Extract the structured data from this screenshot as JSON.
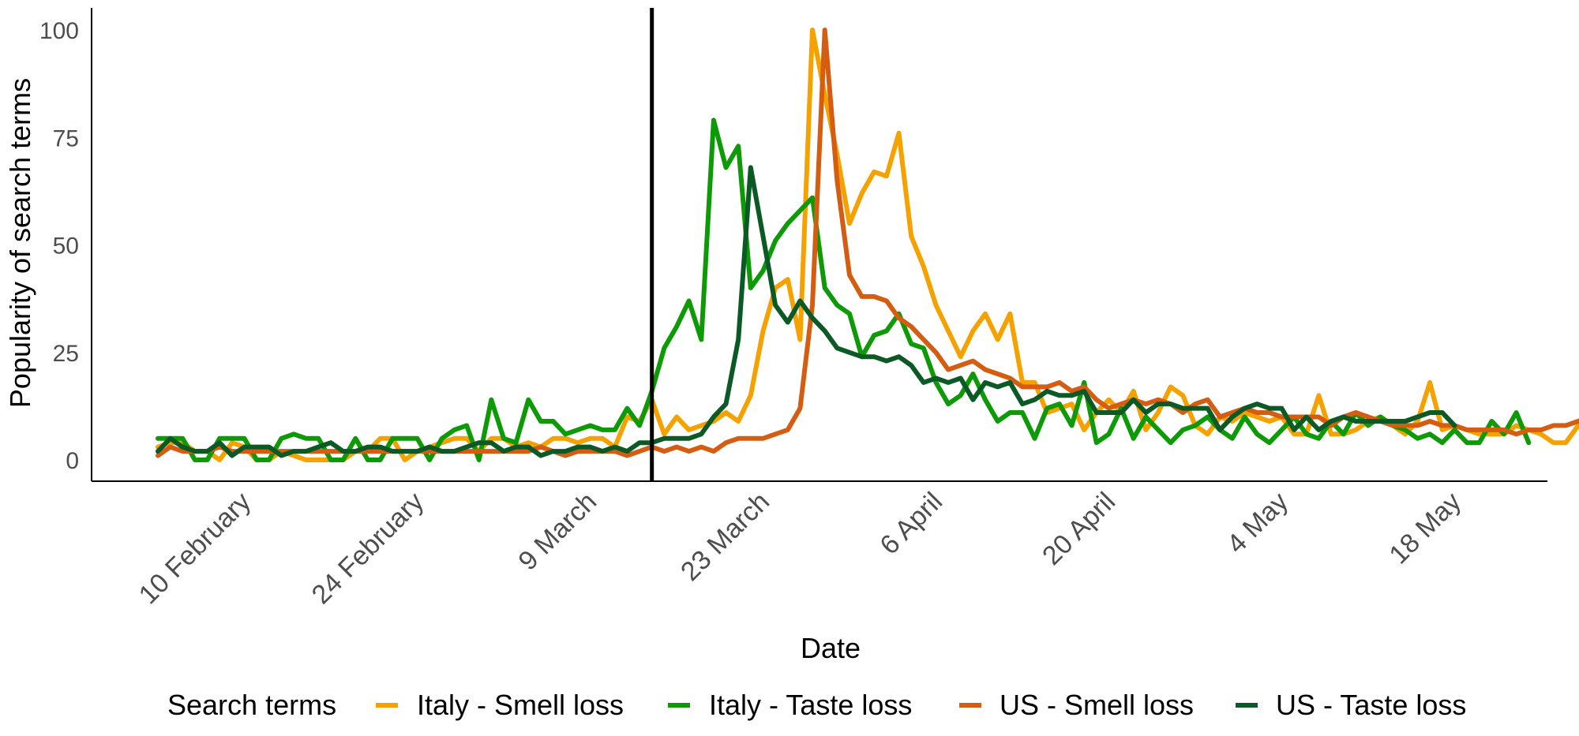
{
  "chart_data": {
    "type": "line",
    "xlabel": "Date",
    "ylabel": "Popularity of search terms",
    "ylim": [
      0,
      105
    ],
    "yticks": [
      "0",
      "25",
      "50",
      "75",
      "100"
    ],
    "x_start": "2020-02-03",
    "x_end": "2020-05-22",
    "xticks": [
      {
        "date": "2020-02-10",
        "label": "10 February"
      },
      {
        "date": "2020-02-24",
        "label": "24 February"
      },
      {
        "date": "2020-03-09",
        "label": "9 March"
      },
      {
        "date": "2020-03-23",
        "label": "23 March"
      },
      {
        "date": "2020-04-06",
        "label": "6 April"
      },
      {
        "date": "2020-04-20",
        "label": "20 April"
      },
      {
        "date": "2020-05-04",
        "label": "4 May"
      },
      {
        "date": "2020-05-18",
        "label": "18 May"
      }
    ],
    "vline_date": "2020-03-14",
    "legend_title": "Search terms",
    "legend_position": "bottom",
    "grid": false,
    "series": [
      {
        "name": "Italy - Smell loss",
        "color": "#F5A100",
        "values": [
          3,
          4,
          4,
          2,
          2,
          0,
          4,
          3,
          0,
          0,
          2,
          1,
          0,
          0,
          0,
          0,
          2,
          2,
          5,
          5,
          0,
          2,
          3,
          4,
          5,
          5,
          2,
          5,
          5,
          3,
          4,
          3,
          5,
          5,
          4,
          5,
          5,
          3,
          10,
          9,
          14,
          6,
          10,
          7,
          8,
          9,
          11,
          9,
          15,
          30,
          40,
          42,
          28,
          100,
          85,
          71,
          55,
          62,
          67,
          66,
          76,
          52,
          45,
          36,
          30,
          24,
          30,
          34,
          28,
          34,
          18,
          18,
          11,
          12,
          13,
          7,
          11,
          14,
          11,
          16,
          7,
          11,
          17,
          15,
          8,
          6,
          10,
          9,
          11,
          10,
          9,
          10,
          6,
          6,
          15,
          6,
          6,
          7,
          9,
          10,
          8,
          6,
          9,
          18,
          7,
          8,
          7,
          6,
          6,
          6,
          8,
          7,
          6,
          4,
          4,
          8,
          6,
          5,
          7,
          9,
          7
        ]
      },
      {
        "name": "Italy - Taste loss",
        "color": "#0E9A06",
        "values": [
          5,
          5,
          5,
          0,
          0,
          5,
          5,
          5,
          0,
          0,
          5,
          6,
          5,
          5,
          0,
          0,
          5,
          0,
          0,
          5,
          5,
          5,
          0,
          5,
          7,
          8,
          0,
          14,
          5,
          4,
          14,
          9,
          9,
          6,
          7,
          8,
          7,
          7,
          12,
          8,
          16,
          26,
          31,
          37,
          28,
          79,
          68,
          73,
          40,
          44,
          51,
          55,
          58,
          61,
          40,
          36,
          34,
          24,
          29,
          30,
          34,
          27,
          26,
          18,
          13,
          15,
          20,
          14,
          9,
          11,
          11,
          5,
          12,
          13,
          8,
          18,
          4,
          6,
          12,
          5,
          10,
          7,
          4,
          7,
          8,
          10,
          7,
          5,
          10,
          6,
          4,
          7,
          10,
          6,
          5,
          9,
          6,
          11,
          8,
          10,
          8,
          7,
          5,
          6,
          4,
          7,
          4,
          4,
          9,
          6,
          11,
          4
        ]
      },
      {
        "name": "US - Smell loss",
        "color": "#D45D12",
        "values": [
          1,
          3,
          2,
          2,
          2,
          3,
          2,
          2,
          2,
          2,
          2,
          2,
          2,
          2,
          2,
          2,
          2,
          2,
          2,
          2,
          2,
          2,
          2,
          2,
          2,
          2,
          2,
          2,
          2,
          2,
          2,
          3,
          2,
          1,
          2,
          2,
          2,
          2,
          1,
          2,
          3,
          2,
          3,
          2,
          3,
          2,
          4,
          5,
          5,
          5,
          6,
          7,
          12,
          36,
          100,
          65,
          43,
          38,
          38,
          37,
          33,
          31,
          28,
          25,
          21,
          22,
          23,
          21,
          20,
          19,
          17,
          17,
          17,
          18,
          16,
          17,
          14,
          12,
          13,
          14,
          13,
          14,
          13,
          11,
          13,
          14,
          10,
          11,
          12,
          11,
          11,
          10,
          10,
          10,
          10,
          8,
          10,
          11,
          10,
          9,
          8,
          8,
          8,
          9,
          8,
          8,
          7,
          7,
          7,
          7,
          6,
          7,
          7,
          8,
          8,
          9,
          10,
          8
        ]
      },
      {
        "name": "US - Taste loss",
        "color": "#0B5A26",
        "values": [
          2,
          5,
          3,
          2,
          2,
          4,
          1,
          3,
          3,
          3,
          1,
          2,
          2,
          3,
          4,
          2,
          2,
          3,
          3,
          2,
          2,
          2,
          3,
          2,
          2,
          3,
          4,
          4,
          2,
          3,
          3,
          1,
          2,
          2,
          3,
          3,
          2,
          3,
          2,
          4,
          4,
          5,
          5,
          5,
          6,
          10,
          13,
          28,
          68,
          52,
          36,
          32,
          37,
          33,
          30,
          26,
          25,
          24,
          24,
          23,
          24,
          22,
          18,
          19,
          18,
          19,
          14,
          18,
          17,
          18,
          13,
          14,
          16,
          15,
          15,
          16,
          11,
          11,
          11,
          14,
          11,
          13,
          13,
          12,
          12,
          12,
          7,
          10,
          12,
          13,
          12,
          12,
          7,
          10,
          7,
          9,
          10,
          9,
          9,
          9,
          9,
          9,
          10,
          11,
          11,
          8
        ]
      }
    ]
  }
}
